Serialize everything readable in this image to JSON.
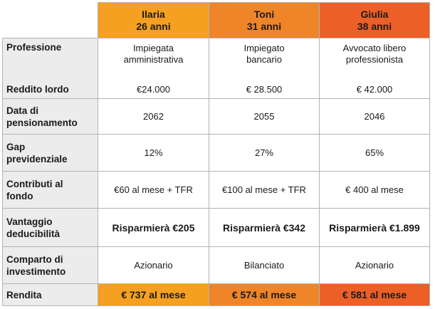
{
  "columns": [
    {
      "name": "Ilaria",
      "age": "26 anni"
    },
    {
      "name": "Toni",
      "age": "31 anni"
    },
    {
      "name": "Giulia",
      "age": "38 anni"
    }
  ],
  "rows": {
    "professione": {
      "label": "Professione",
      "values": [
        [
          "Impiegata",
          "amministrativa"
        ],
        [
          "Impiegato",
          "bancario"
        ],
        [
          "Avvocato libero",
          "professionista"
        ]
      ]
    },
    "reddito": {
      "label": "Reddito lordo",
      "values": [
        "€24.000",
        "€ 28.500",
        "€ 42.000"
      ]
    },
    "pensionamento": {
      "label": [
        "Data di",
        "pensionamento"
      ],
      "values": [
        "2062",
        "2055",
        "2046"
      ]
    },
    "gap": {
      "label": [
        "Gap",
        "previdenziale"
      ],
      "values": [
        "12%",
        "27%",
        "65%"
      ]
    },
    "contributi": {
      "label": [
        "Contributi al",
        "fondo"
      ],
      "values": [
        "€60 al mese + TFR",
        "€100 al mese + TFR",
        "€ 400 al mese"
      ]
    },
    "vantaggio": {
      "label": [
        "Vantaggio",
        "deducibilità"
      ],
      "values": [
        "Risparmierà €205",
        "Risparmierà €342",
        "Risparmierà €1.899"
      ]
    },
    "comparto": {
      "label": [
        "Comparto di",
        "investimento"
      ],
      "values": [
        "Azionario",
        "Bilanciato",
        "Azionario"
      ]
    },
    "rendita": {
      "label": "Rendita",
      "values": [
        "€ 737 al mese",
        "€ 574 al mese",
        "€ 581 al mese"
      ]
    }
  },
  "colors": {
    "ilaria": "#f5a020",
    "toni": "#f08428",
    "giulia": "#ec5f26",
    "label_bg": "#ececec",
    "border": "#b3b3b3"
  }
}
